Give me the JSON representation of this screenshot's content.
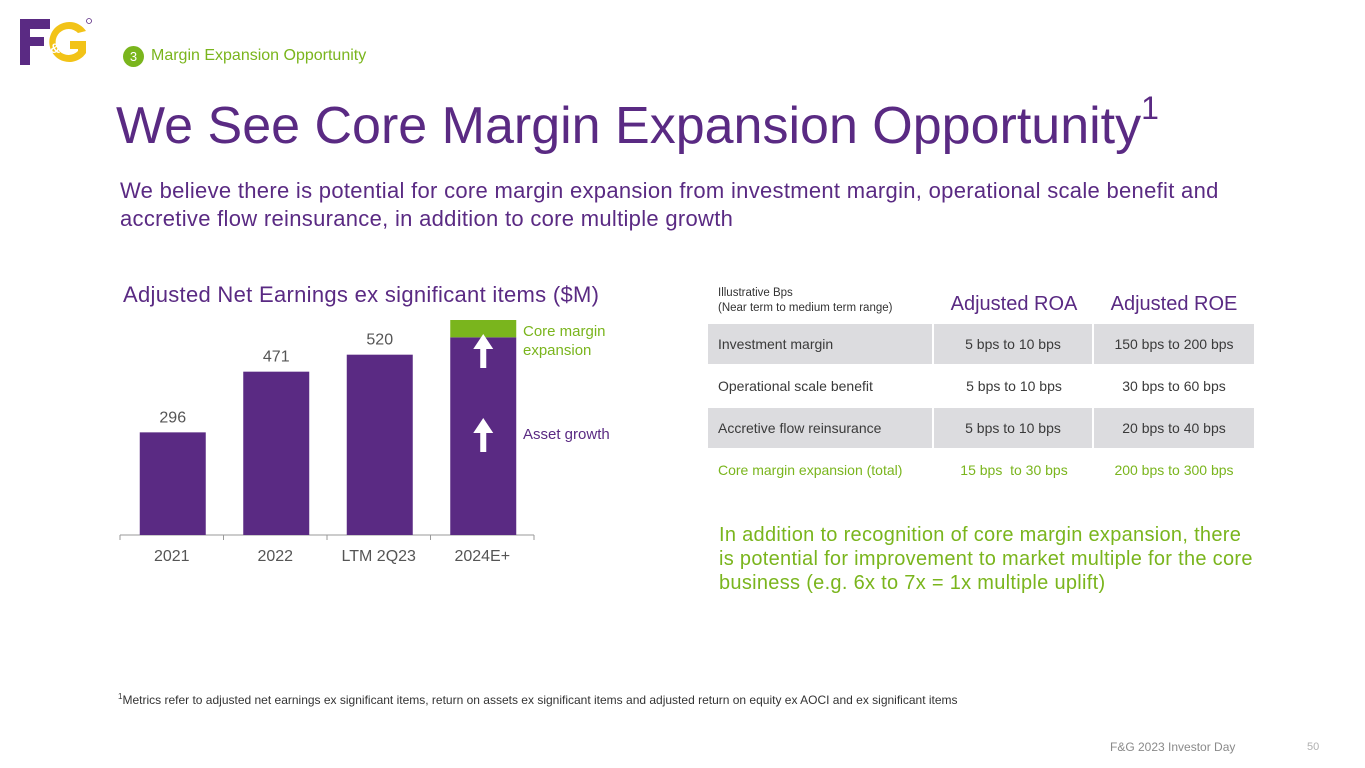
{
  "brand": {
    "logo_text": "F&G",
    "purple": "#5a2a83",
    "green": "#7ab51d",
    "yellow": "#f2c318"
  },
  "section": {
    "number": "3",
    "label": "Margin Expansion Opportunity"
  },
  "title": {
    "text": "We See Core Margin Expansion Opportunity",
    "footnote_marker": "1"
  },
  "subtitle": "We believe there is potential for core margin expansion from investment margin, operational scale benefit and accretive flow reinsurance, in addition to core multiple growth",
  "chart_data": {
    "type": "bar",
    "title": "Adjusted Net Earnings ex significant items ($M)",
    "categories": [
      "2021",
      "2022",
      "LTM 2Q23",
      "2024E+"
    ],
    "series": [
      {
        "name": "Adjusted Net Earnings",
        "values": [
          296,
          471,
          520,
          570
        ]
      },
      {
        "name": "Core margin expansion",
        "values": [
          0,
          0,
          0,
          50
        ]
      }
    ],
    "data_labels": [
      "296",
      "471",
      "520",
      ""
    ],
    "ylim": [
      0,
      620
    ],
    "xlabel": "",
    "ylabel": "",
    "annotations": [
      {
        "label": "Core margin expansion",
        "color": "#7ab51d",
        "category": "2024E+",
        "arrow": "up"
      },
      {
        "label": "Asset growth",
        "color": "#5a2a83",
        "category": "2024E+",
        "arrow": "up"
      }
    ],
    "bar_color": "#5a2a83",
    "stack_color": "#7ab51d"
  },
  "table": {
    "header": {
      "label_line1": "Illustrative Bps",
      "label_line2": "(Near term to medium term range)",
      "col_roa": "Adjusted ROA",
      "col_roe": "Adjusted ROE"
    },
    "rows": [
      {
        "label": "Investment margin",
        "roa": "5 bps to 10 bps",
        "roe": "150 bps to 200 bps"
      },
      {
        "label": "Operational scale benefit",
        "roa": "5 bps to 10 bps",
        "roe": "30 bps to 60 bps"
      },
      {
        "label": "Accretive flow reinsurance",
        "roa": "5 bps to 10 bps",
        "roe": "20 bps to 40 bps"
      },
      {
        "label": "Core margin expansion (total)",
        "roa": "15 bps  to 30 bps",
        "roe": "200 bps to 300 bps"
      }
    ]
  },
  "note": "In addition to recognition of core margin expansion, there is potential for improvement to market multiple for the core business (e.g. 6x to 7x = 1x multiple uplift)",
  "footnote": {
    "marker": "1",
    "text": "Metrics refer to adjusted net earnings ex significant items, return on assets ex significant items and adjusted return on equity ex AOCI and ex significant items"
  },
  "footer": {
    "event": "F&G 2023 Investor Day",
    "page": "50"
  }
}
